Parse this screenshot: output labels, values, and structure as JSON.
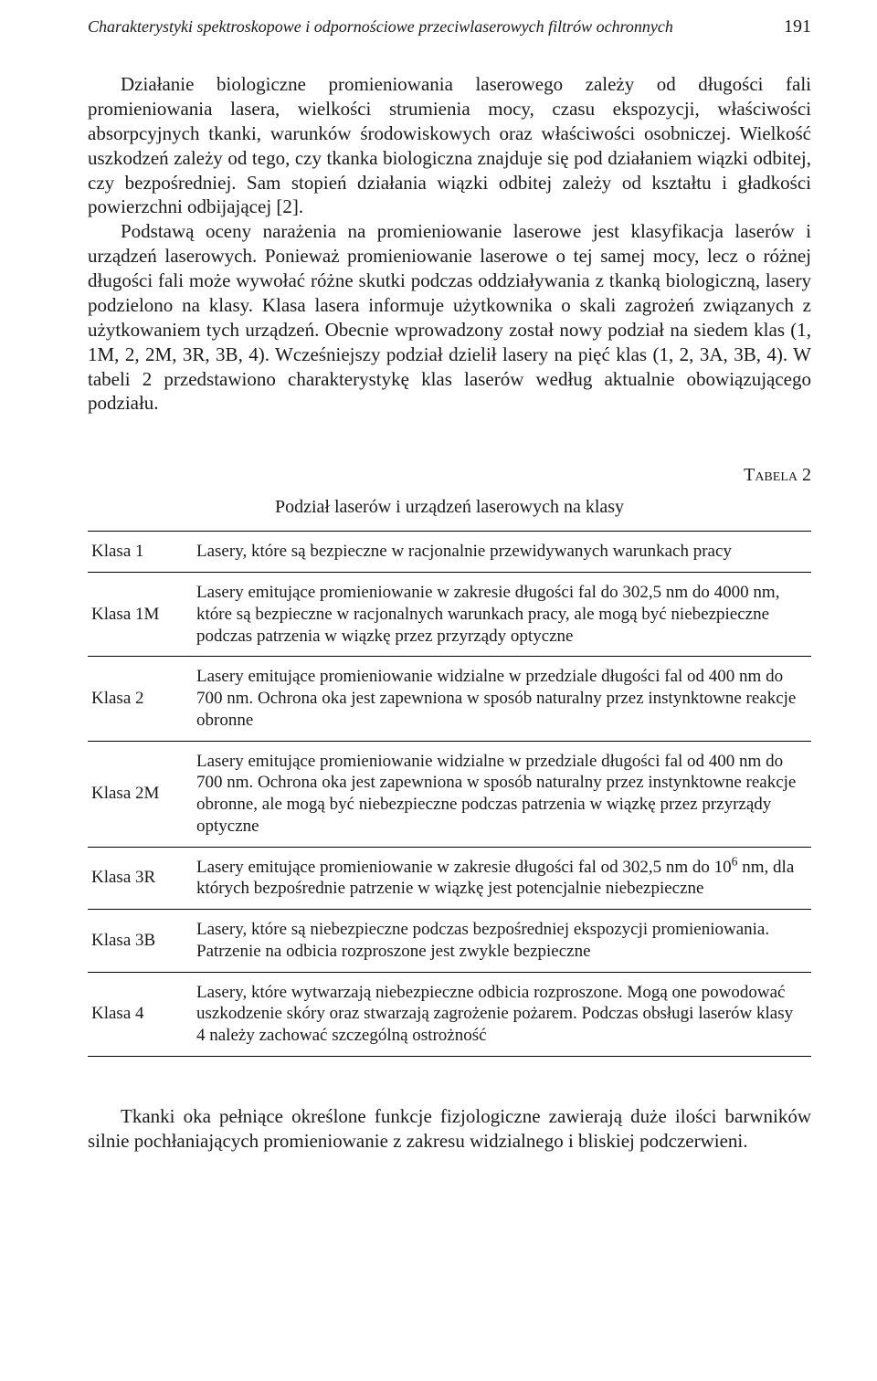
{
  "header": {
    "running_title": "Charakterystyki spektroskopowe i odpornościowe przeciwlaserowych filtrów ochronnych",
    "page_number": "191"
  },
  "body": {
    "p1": "Działanie biologiczne promieniowania laserowego zależy od długości fali promieniowania lasera, wielkości strumienia mocy, czasu ekspozycji, właściwości absorpcyjnych tkanki, warunków środowiskowych oraz właściwości osobniczej. Wielkość uszkodzeń zależy od tego, czy tkanka biologiczna znajduje się pod działaniem wiązki odbitej, czy bezpośredniej. Sam stopień działania wiązki odbitej zależy od kształtu i gładkości powierzchni odbijającej [2].",
    "p2": "Podstawą oceny narażenia na promieniowanie laserowe jest klasyfikacja laserów i urządzeń laserowych. Ponieważ promieniowanie laserowe o tej samej mocy, lecz o różnej długości fali może wywołać różne skutki podczas oddziaływania z tkanką biologiczną, lasery podzielono na klasy. Klasa lasera informuje użytkownika o skali zagrożeń związanych z użytkowaniem tych urządzeń. Obecnie wprowadzony został nowy podział na siedem klas (1, 1M, 2, 2M, 3R, 3B, 4). Wcześniejszy podział dzielił lasery na pięć klas (1, 2, 3A, 3B, 4). W tabeli 2 przedstawiono charakterystykę klas laserów według aktualnie obowiązującego podziału."
  },
  "table": {
    "label": "Tabela 2",
    "caption": "Podział laserów i urządzeń laserowych na klasy",
    "rows": [
      {
        "class": "Klasa 1",
        "desc": "Lasery, które są bezpieczne w racjonalnie przewidywanych warunkach pracy"
      },
      {
        "class": "Klasa 1M",
        "desc": "Lasery emitujące promieniowanie w zakresie długości fal do 302,5 nm do 4000 nm, które są bezpieczne w racjonalnych warunkach pracy, ale mogą być niebezpieczne podczas patrzenia w wiązkę przez przyrządy optyczne"
      },
      {
        "class": "Klasa 2",
        "desc": "Lasery emitujące promieniowanie widzialne w przedziale długości fal od 400 nm do 700 nm. Ochrona oka jest zapewniona w sposób naturalny przez instynktowne reakcje obronne"
      },
      {
        "class": "Klasa 2M",
        "desc": "Lasery emitujące promieniowanie widzialne w przedziale długości fal od 400 nm do 700 nm. Ochrona oka jest zapewniona w sposób naturalny przez instynktowne reakcje obronne, ale mogą być niebezpieczne podczas patrzenia w wiązkę przez przyrządy optyczne"
      },
      {
        "class": "Klasa 3R",
        "desc_html": "Lasery emitujące promieniowanie w zakresie długości fal od 302,5 nm do 10<span class=\"sup\">6</span> nm, dla których bezpośrednie patrzenie w wiązkę jest potencjalnie niebezpieczne"
      },
      {
        "class": "Klasa 3B",
        "desc": "Lasery, które są niebezpieczne podczas bezpośredniej ekspozycji promieniowania. Patrzenie na odbicia rozproszone jest zwykle bezpieczne"
      },
      {
        "class": "Klasa 4",
        "desc": "Lasery, które wytwarzają niebezpieczne odbicia rozproszone. Mogą one powodować uszkodzenie skóry oraz stwarzają zagrożenie pożarem. Podczas obsługi laserów klasy 4 należy zachować szczególną ostrożność"
      }
    ]
  },
  "closing": {
    "p": "Tkanki oka pełniące określone funkcje fizjologiczne zawierają duże ilości barwników silnie pochłaniających promieniowanie z zakresu widzialnego i bliskiej podczerwieni."
  }
}
